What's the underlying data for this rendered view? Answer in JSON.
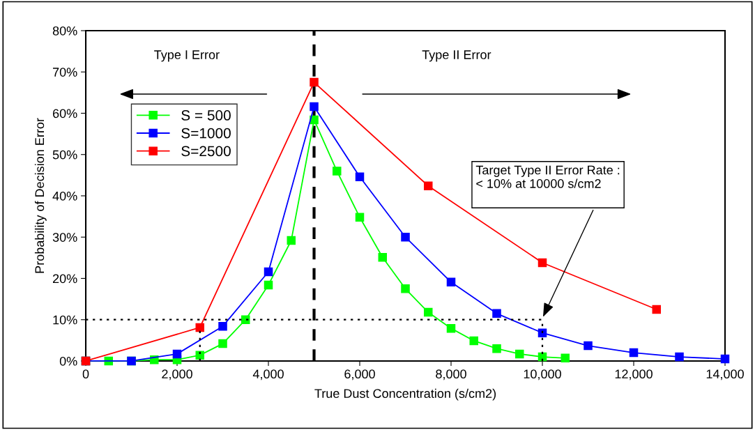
{
  "chart_data": {
    "type": "line",
    "xlabel": "True Dust Concentration (s/cm2)",
    "ylabel": "Probability of Decision Error",
    "xlim": [
      0,
      14000
    ],
    "xticks": [
      0,
      {
        "value": 2000,
        "label": "2,000"
      },
      {
        "value": 4000,
        "label": "4,000"
      },
      {
        "value": 6000,
        "label": "6,000"
      },
      {
        "value": 8000,
        "label": "8,000"
      },
      {
        "value": 10000,
        "label": "10,000"
      },
      {
        "value": 12000,
        "label": "12,000"
      },
      {
        "value": 14000,
        "label": "14,000"
      }
    ],
    "ylim": [
      0,
      80
    ],
    "yticks": [
      {
        "value": 0,
        "label": "0%"
      },
      {
        "value": 10,
        "label": "10%"
      },
      {
        "value": 20,
        "label": "20%"
      },
      {
        "value": 30,
        "label": "30%"
      },
      {
        "value": 40,
        "label": "40%"
      },
      {
        "value": 50,
        "label": "50%"
      },
      {
        "value": 60,
        "label": "60%"
      },
      {
        "value": 70,
        "label": "70%"
      },
      {
        "value": 80,
        "label": "80%"
      }
    ],
    "grid": false,
    "legend": "top left",
    "marker": "square",
    "line_style": "solid",
    "series": [
      {
        "name": "S = 500",
        "color": "#00ff00",
        "x": [
          0,
          500,
          1000,
          1500,
          2000,
          2500,
          3000,
          3500,
          4000,
          4500,
          5000,
          5500,
          6000,
          6500,
          7000,
          7500,
          8000,
          8500,
          9000,
          9500,
          10000,
          10500
        ],
        "values": [
          0,
          0,
          0,
          0.3,
          0.3,
          1.4,
          4.2,
          10,
          18.4,
          29.2,
          58.4,
          46,
          34.8,
          25.1,
          17.5,
          11.8,
          7.9,
          4.9,
          3,
          1.7,
          1.0,
          0.7
        ]
      },
      {
        "name": "S=1000",
        "color": "#0000ff",
        "x": [
          0,
          1000,
          2000,
          3000,
          4000,
          5000,
          6000,
          7000,
          8000,
          9000,
          10000,
          11000,
          12000,
          13000,
          14000
        ],
        "values": [
          0,
          0,
          1.7,
          8.4,
          21.6,
          61.6,
          44.6,
          30,
          19.1,
          11.5,
          6.8,
          3.7,
          2,
          1,
          0.5
        ]
      },
      {
        "name": "S=2500",
        "color": "#ff0000",
        "x": [
          0,
          2500,
          5000,
          7500,
          10000,
          12500
        ],
        "values": [
          0,
          8.1,
          67.5,
          42.4,
          23.8,
          12.5
        ]
      },
      {
        "color": "#000000",
        "line_style": "dotted",
        "marker": "none",
        "x": [
          0,
          10000
        ],
        "values": [
          10,
          10
        ]
      },
      {
        "color": "#000000",
        "line_style": "dotted",
        "marker": "none",
        "x": [
          2500,
          2500
        ],
        "values": [
          0,
          8.1
        ]
      },
      {
        "color": "#000000",
        "line_style": "dotted",
        "marker": "none",
        "x": [
          10000,
          10000
        ],
        "values": [
          0,
          10
        ]
      }
    ],
    "ref_lines": [
      {
        "axis": "x",
        "value": 5000,
        "color": "#000000",
        "line_style": "dashed"
      }
    ],
    "annotations": [
      "Type I Error",
      "Type II Error",
      "Target Type II Error Rate :\n< 10% at 10000 s/cm2"
    ]
  }
}
